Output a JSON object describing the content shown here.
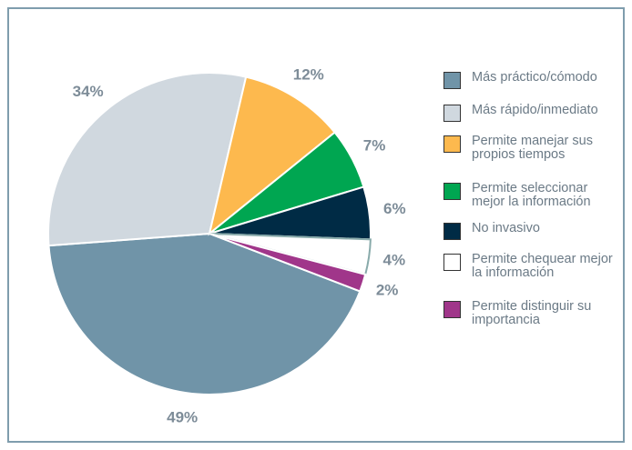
{
  "chart_data": {
    "type": "pie",
    "categories": [
      "Más práctico/cómodo",
      "Más rápido/inmediato",
      "Permite manejar sus propios tiempos",
      "Permite seleccionar mejor la información",
      "No invasivo",
      "Permite chequear mejor la información",
      "Permite distinguir su importancia"
    ],
    "values": [
      49,
      34,
      12,
      7,
      6,
      4,
      2
    ],
    "value_labels": [
      "49%",
      "34%",
      "12%",
      "7%",
      "6%",
      "4%",
      "2%"
    ],
    "colors": [
      "#7094a8",
      "#d0d8df",
      "#fdb94e",
      "#00a651",
      "#002b45",
      "#ffffff",
      "#a0368a"
    ],
    "legend": "right"
  }
}
